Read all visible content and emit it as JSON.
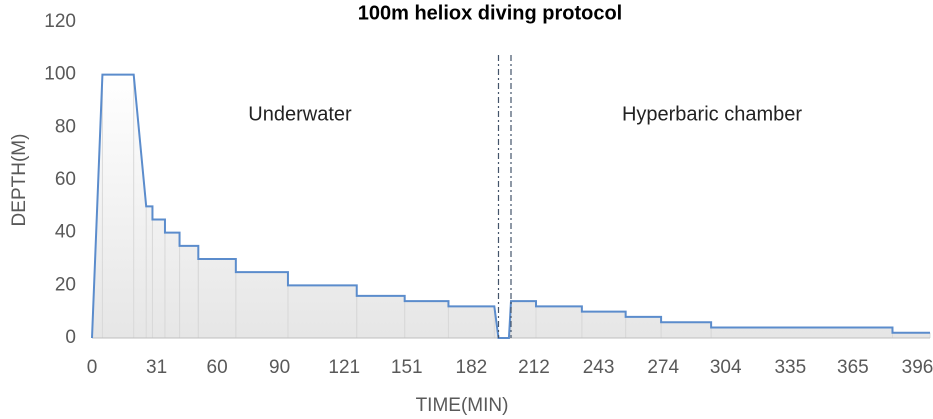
{
  "chart_data": {
    "type": "line",
    "title": "100m heliox diving protocol",
    "xlabel": "TIME(MIN)",
    "ylabel": "DEPTH(M)",
    "annotations": [
      "Underwater",
      "Hyperbaric chamber"
    ],
    "x": [
      0,
      5,
      20,
      26,
      29,
      29,
      35,
      35,
      42,
      42,
      51,
      51,
      69,
      69,
      94,
      94,
      127,
      127,
      150,
      150,
      171,
      171,
      193,
      195,
      200,
      201,
      213,
      213,
      235,
      235,
      256,
      256,
      273,
      273,
      297,
      297,
      384,
      384,
      402
    ],
    "series": [
      {
        "name": "Depth",
        "color": "#5b8ccc",
        "values": [
          0,
          100,
          100,
          50,
          50,
          45,
          45,
          40,
          40,
          35,
          35,
          30,
          30,
          25,
          25,
          20,
          20,
          16,
          16,
          14,
          14,
          12,
          12,
          0,
          0,
          14,
          14,
          12,
          12,
          10,
          10,
          8,
          8,
          6,
          6,
          4,
          4,
          2,
          2
        ]
      }
    ],
    "vlines": [
      195,
      201
    ],
    "xlim": [
      0,
      402
    ],
    "ylim": [
      0,
      120
    ],
    "xticks": [
      0,
      31,
      60,
      90,
      121,
      151,
      182,
      212,
      243,
      274,
      304,
      335,
      365,
      396
    ],
    "yticks": [
      0,
      20,
      40,
      60,
      80,
      100,
      120
    ]
  }
}
